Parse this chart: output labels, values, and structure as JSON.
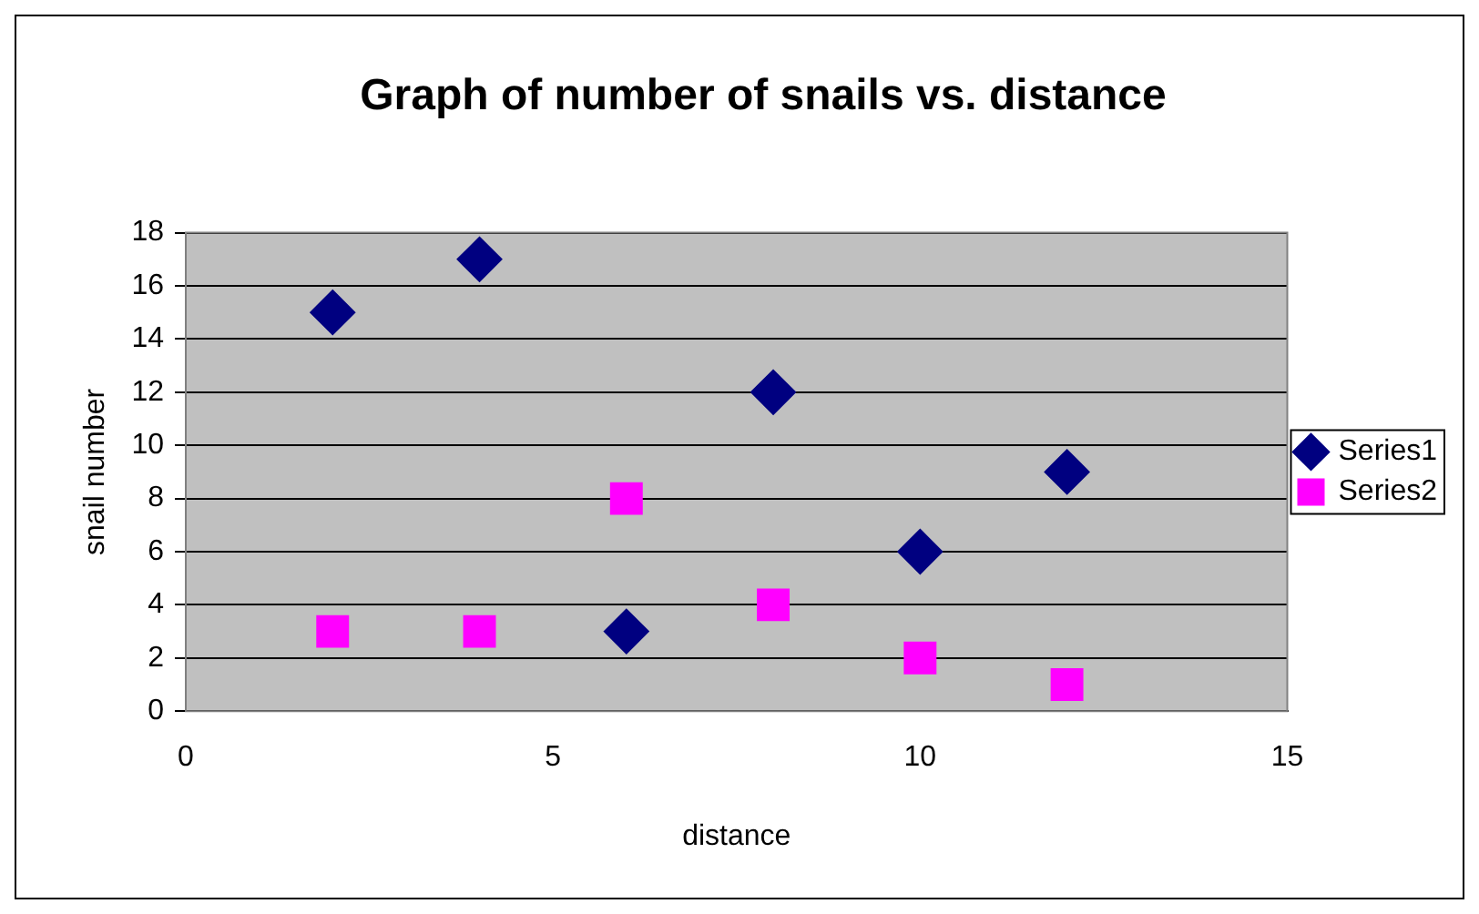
{
  "chart_data": {
    "type": "scatter",
    "title": "Graph of number of snails vs. distance",
    "xlabel": "distance",
    "ylabel": "snail number",
    "x": [
      2,
      4,
      6,
      8,
      10,
      12
    ],
    "series": [
      {
        "name": "Series1",
        "color": "#000080",
        "marker": "diamond",
        "values": [
          15,
          17,
          3,
          12,
          6,
          9
        ]
      },
      {
        "name": "Series2",
        "color": "#ff00ff",
        "marker": "square",
        "values": [
          3,
          3,
          8,
          4,
          2,
          1
        ]
      }
    ],
    "xlim": [
      0,
      15
    ],
    "xticks": [
      0,
      5,
      10,
      15
    ],
    "ylim": [
      0,
      18
    ],
    "yticks": [
      0,
      2,
      4,
      6,
      8,
      10,
      12,
      14,
      16,
      18
    ],
    "grid": "y",
    "legend": "right"
  }
}
